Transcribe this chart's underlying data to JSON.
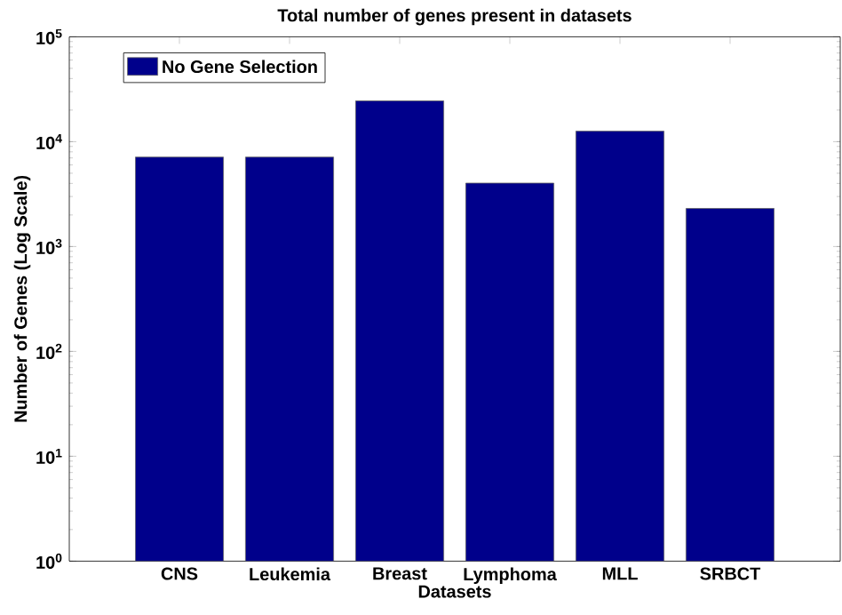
{
  "chart_data": {
    "type": "bar",
    "title": "Total number of genes present in datasets",
    "xlabel": "Datasets",
    "ylabel": "Number of Genes (Log Scale)",
    "categories": [
      "CNS",
      "Leukemia",
      "Breast",
      "Lymphoma",
      "MLL",
      "SRBCT"
    ],
    "series": [
      {
        "name": "No Gene Selection",
        "color": "#00008b",
        "values": [
          7129,
          7129,
          24481,
          4026,
          12582,
          2308
        ]
      }
    ],
    "log": "y",
    "ylim": [
      1,
      100000
    ],
    "yticks": [
      {
        "value": 1,
        "label": "10$^{0}$"
      },
      {
        "value": 10,
        "label": "10$^{1}$"
      },
      {
        "value": 100,
        "label": "10$^{2}$"
      },
      {
        "value": 1000,
        "label": "10$^{3}$"
      },
      {
        "value": 10000,
        "label": "10$^{4}$"
      },
      {
        "value": 100000,
        "label": "10$^{5}$"
      }
    ],
    "legend": "top left",
    "grid": false
  }
}
